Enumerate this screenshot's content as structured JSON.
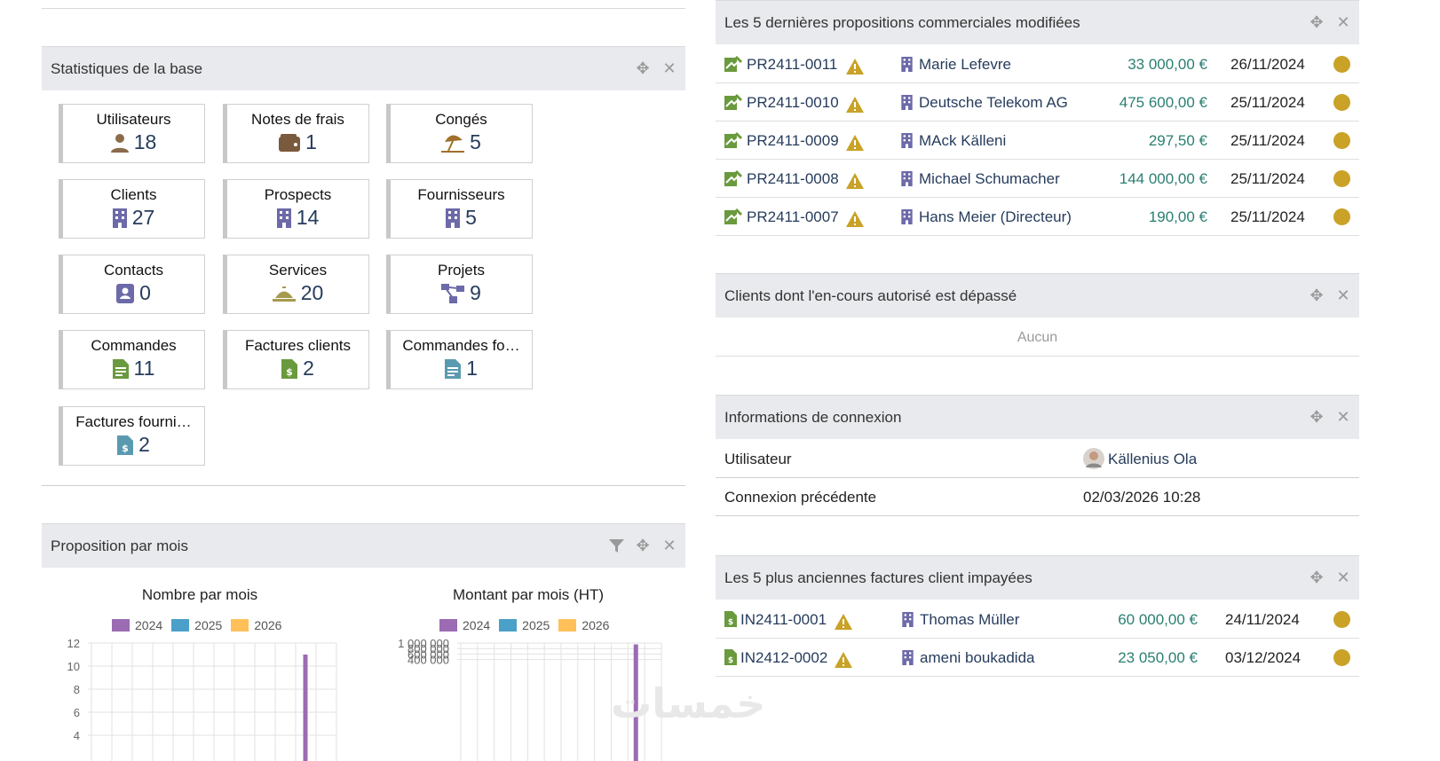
{
  "stats": {
    "title": "Statistiques de la base",
    "tiles": [
      {
        "label": "Utilisateurs",
        "value": "18",
        "icon": "user-icon",
        "color": "#8b6b4a"
      },
      {
        "label": "Notes de frais",
        "value": "1",
        "icon": "wallet-icon",
        "color": "#7a5a3c"
      },
      {
        "label": "Congés",
        "value": "5",
        "icon": "beach-umbrella-icon",
        "color": "#a0702a"
      },
      {
        "label": "Clients",
        "value": "27",
        "icon": "building-icon",
        "color": "#6c6aa8"
      },
      {
        "label": "Prospects",
        "value": "14",
        "icon": "building-icon",
        "color": "#6c6aa8"
      },
      {
        "label": "Fournisseurs",
        "value": "5",
        "icon": "building-icon",
        "color": "#6c6aa8"
      },
      {
        "label": "Contacts",
        "value": "0",
        "icon": "contact-card-icon",
        "color": "#6c6aa8"
      },
      {
        "label": "Services",
        "value": "20",
        "icon": "service-bell-icon",
        "color": "#a69a4e"
      },
      {
        "label": "Projets",
        "value": "9",
        "icon": "project-tree-icon",
        "color": "#6c6aa8"
      },
      {
        "label": "Commandes",
        "value": "11",
        "icon": "order-file-icon",
        "color": "#6a9a3e"
      },
      {
        "label": "Factures clients",
        "value": "2",
        "icon": "invoice-file-icon",
        "color": "#6a9a3e"
      },
      {
        "label": "Commandes fo…",
        "value": "1",
        "icon": "supplier-order-file-icon",
        "color": "#5a9ab0"
      },
      {
        "label": "Factures fourni…",
        "value": "2",
        "icon": "supplier-invoice-file-icon",
        "color": "#5a9ab0"
      }
    ]
  },
  "proposals": {
    "title": "Les 5 dernières propositions commerciales modifiées",
    "rows": [
      {
        "ref": "PR2411-0011",
        "company": "Marie Lefevre",
        "amount": "33 000,00 €",
        "date": "26/11/2024"
      },
      {
        "ref": "PR2411-0010",
        "company": "Deutsche Telekom AG",
        "amount": "475 600,00 €",
        "date": "25/11/2024"
      },
      {
        "ref": "PR2411-0009",
        "company": "MAck Källeni",
        "amount": "297,50 €",
        "date": "25/11/2024"
      },
      {
        "ref": "PR2411-0008",
        "company": "Michael Schumacher",
        "amount": "144 000,00 €",
        "date": "25/11/2024"
      },
      {
        "ref": "PR2411-0007",
        "company": "Hans Meier (Directeur)",
        "amount": "190,00 €",
        "date": "25/11/2024"
      }
    ]
  },
  "credit": {
    "title": "Clients dont l'en-cours autorisé est dépassé",
    "empty": "Aucun"
  },
  "login": {
    "title": "Informations de connexion",
    "user_label": "Utilisateur",
    "user_value": "Källenius Ola",
    "prev_label": "Connexion précédente",
    "prev_value": "02/03/2026 10:28"
  },
  "invoices": {
    "title": "Les 5 plus anciennes factures client impayées",
    "rows": [
      {
        "ref": "IN2411-0001",
        "company": "Thomas Müller",
        "amount": "60 000,00 €",
        "date": "24/11/2024"
      },
      {
        "ref": "IN2412-0002",
        "company": "ameni boukadida",
        "amount": "23 050,00 €",
        "date": "03/12/2024"
      }
    ]
  },
  "proposal_chart_box": {
    "title": "Proposition par mois"
  },
  "colors": {
    "2024": "#9b6bb3",
    "2025": "#4aa0c8",
    "2026": "#ffc05a",
    "status_dot": "#c9a227",
    "warning": "#c9a227"
  },
  "watermark": "خمسات",
  "chart_data": [
    {
      "type": "bar",
      "title": "Nombre par mois",
      "series": [
        {
          "name": "2024",
          "values": [
            0,
            0,
            0,
            0,
            0,
            0,
            0,
            0,
            0,
            0,
            11,
            0
          ]
        },
        {
          "name": "2025",
          "values": [
            0,
            0,
            0,
            0,
            0,
            0,
            0,
            0,
            0,
            0,
            0,
            0
          ]
        },
        {
          "name": "2026",
          "values": [
            0,
            0,
            0,
            0,
            0,
            0,
            0,
            0,
            0,
            0,
            0,
            0
          ]
        }
      ],
      "yticks": [
        "12",
        "10",
        "8",
        "6",
        "4"
      ],
      "ylim": [
        0,
        12
      ],
      "grid": true,
      "legend": "top"
    },
    {
      "type": "bar",
      "title": "Montant par mois (HT)",
      "series": [
        {
          "name": "2024",
          "values": [
            0,
            0,
            0,
            0,
            0,
            0,
            0,
            0,
            0,
            0,
            950000,
            0
          ]
        },
        {
          "name": "2025",
          "values": [
            0,
            0,
            0,
            0,
            0,
            0,
            0,
            0,
            0,
            0,
            0,
            0
          ]
        },
        {
          "name": "2026",
          "values": [
            0,
            0,
            0,
            0,
            0,
            0,
            0,
            0,
            0,
            0,
            0,
            0
          ]
        }
      ],
      "yticks": [
        "1 000 000",
        "800 000",
        "600 000",
        "400 000"
      ],
      "ylim": [
        0,
        1000000
      ],
      "grid": true,
      "legend": "top"
    }
  ]
}
